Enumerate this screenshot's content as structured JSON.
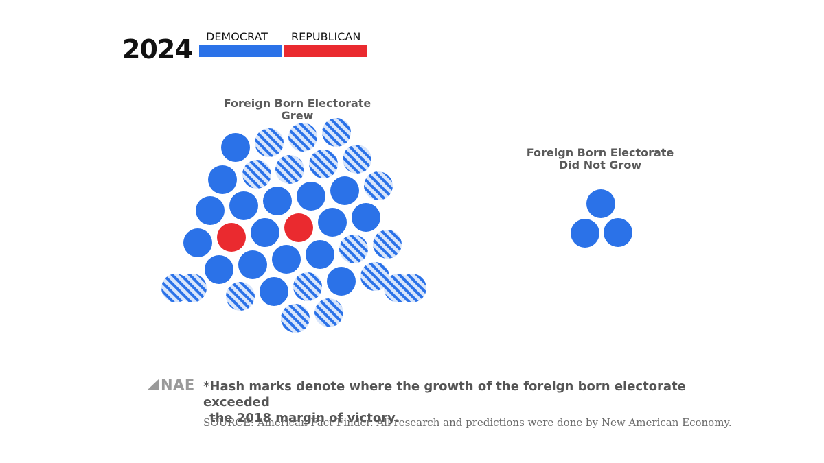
{
  "chart_data": {
    "type": "scatter",
    "chart_kind": "dot cluster (one dot per district)",
    "title": "2024",
    "legend": [
      {
        "name": "DEMOCRAT",
        "color": "#2b72e8"
      },
      {
        "name": "REPUBLICAN",
        "color": "#ea2a2f"
      }
    ],
    "clusters": [
      {
        "name": "Foreign Born Electorate Grew",
        "counts": {
          "democrat_solid": 17,
          "democrat_hash": 19,
          "republican_solid": 2,
          "republican_hash": 0
        },
        "dots": [
          {
            "party": "democrat",
            "hash": false
          },
          {
            "party": "democrat",
            "hash": true
          },
          {
            "party": "democrat",
            "hash": true
          },
          {
            "party": "democrat",
            "hash": true
          },
          {
            "party": "democrat",
            "hash": false
          },
          {
            "party": "democrat",
            "hash": true
          },
          {
            "party": "democrat",
            "hash": true
          },
          {
            "party": "democrat",
            "hash": true
          },
          {
            "party": "democrat",
            "hash": true
          },
          {
            "party": "democrat",
            "hash": false
          },
          {
            "party": "democrat",
            "hash": false
          },
          {
            "party": "democrat",
            "hash": false
          },
          {
            "party": "democrat",
            "hash": false
          },
          {
            "party": "democrat",
            "hash": false
          },
          {
            "party": "democrat",
            "hash": true
          },
          {
            "party": "democrat",
            "hash": false
          },
          {
            "party": "republican",
            "hash": false
          },
          {
            "party": "democrat",
            "hash": false
          },
          {
            "party": "republican",
            "hash": false
          },
          {
            "party": "democrat",
            "hash": false
          },
          {
            "party": "democrat",
            "hash": false
          },
          {
            "party": "democrat",
            "hash": false
          },
          {
            "party": "democrat",
            "hash": false
          },
          {
            "party": "democrat",
            "hash": false
          },
          {
            "party": "democrat",
            "hash": false
          },
          {
            "party": "democrat",
            "hash": true
          },
          {
            "party": "democrat",
            "hash": true
          },
          {
            "party": "democrat",
            "hash": true
          },
          {
            "party": "democrat",
            "hash": false
          },
          {
            "party": "democrat",
            "hash": true
          },
          {
            "party": "democrat",
            "hash": false
          },
          {
            "party": "democrat",
            "hash": true
          },
          {
            "party": "democrat",
            "hash": true
          },
          {
            "party": "democrat",
            "hash": true
          },
          {
            "party": "democrat",
            "hash": true
          },
          {
            "party": "democrat",
            "hash": true
          },
          {
            "party": "democrat",
            "hash": true
          },
          {
            "party": "democrat",
            "hash": true
          }
        ]
      },
      {
        "name": "Foreign Born Electorate Did Not Grow",
        "name_lines": [
          "Foreign Born Electorate",
          "Did Not Grow"
        ],
        "counts": {
          "democrat_solid": 3,
          "democrat_hash": 0,
          "republican_solid": 0,
          "republican_hash": 0
        },
        "dots": [
          {
            "party": "democrat",
            "hash": false
          },
          {
            "party": "democrat",
            "hash": false
          },
          {
            "party": "democrat",
            "hash": false
          }
        ]
      }
    ]
  },
  "colors": {
    "democrat": "#2b72e8",
    "republican": "#ea2a2f",
    "hash_light": "#d9e6fb"
  },
  "footer": {
    "logo_text": "NAE",
    "footnote_line1": "*Hash marks denote where the growth of the foreign born electorate exceeded",
    "footnote_line2": "the 2018 margin of victory.",
    "source": "SOURCE: American Fact Finder. All research and predictions were done by New American Economy."
  }
}
